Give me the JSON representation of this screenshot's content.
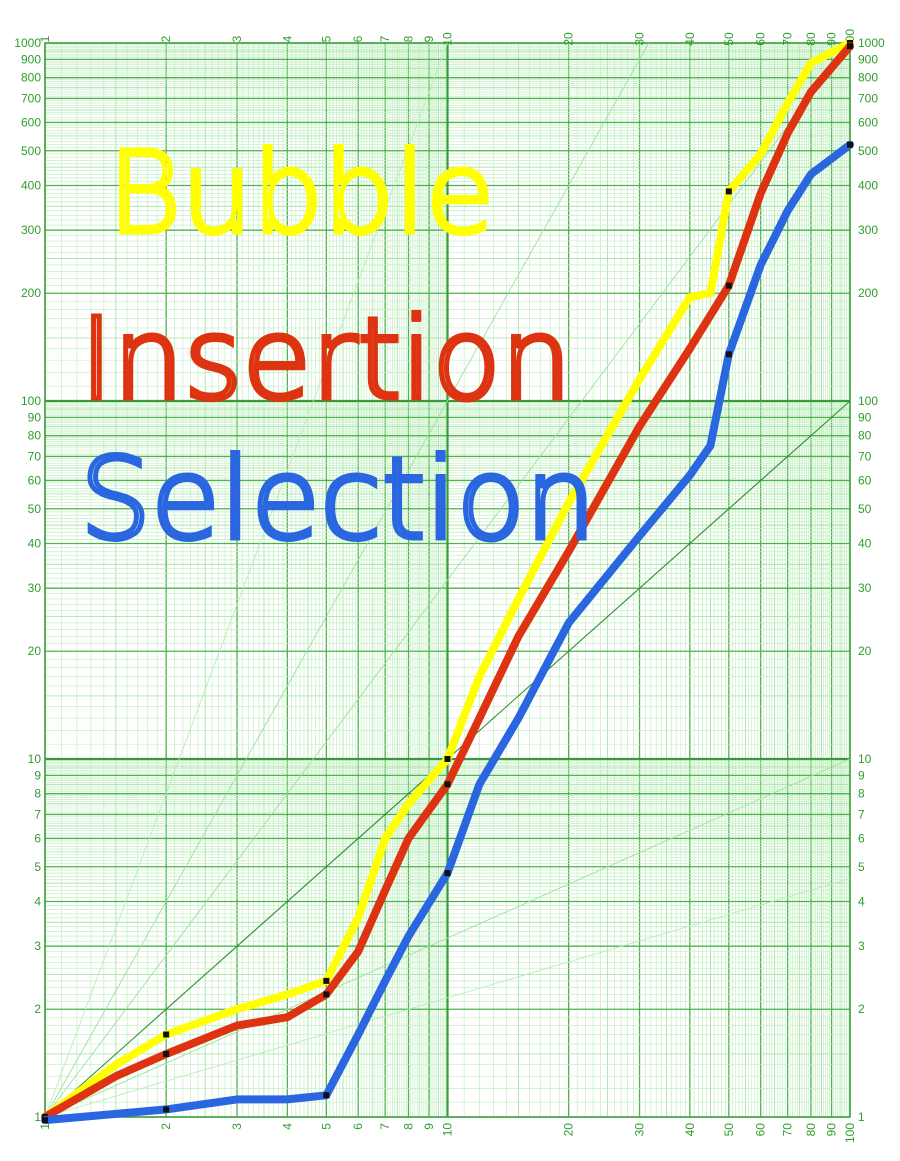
{
  "chart_data": {
    "type": "line",
    "title": "",
    "xlabel": "",
    "ylabel": "",
    "x_scale": "log",
    "y_scale": "log",
    "xlim": [
      1,
      100
    ],
    "ylim": [
      1,
      1000
    ],
    "grid": true,
    "legend_position": "top-left",
    "x_tick_labels": [
      "1",
      "2",
      "3",
      "4",
      "5",
      "6",
      "7",
      "8",
      "9",
      "10",
      "20",
      "30",
      "40",
      "50",
      "60",
      "70",
      "80",
      "90",
      "100"
    ],
    "y_tick_labels": [
      "1",
      "2",
      "3",
      "4",
      "5",
      "6",
      "7",
      "8",
      "9",
      "10",
      "20",
      "30",
      "40",
      "50",
      "60",
      "70",
      "80",
      "90",
      "100",
      "200",
      "300",
      "400",
      "500",
      "600",
      "700",
      "800",
      "900",
      "1000"
    ],
    "series": [
      {
        "name": "Bubble",
        "color": "#ffff00",
        "points": [
          [
            1,
            1
          ],
          [
            1.5,
            1.4
          ],
          [
            2,
            1.7
          ],
          [
            3,
            2.0
          ],
          [
            4,
            2.2
          ],
          [
            5,
            2.4
          ],
          [
            6,
            3.6
          ],
          [
            7,
            6.0
          ],
          [
            8,
            7.5
          ],
          [
            10,
            10
          ],
          [
            12,
            17
          ],
          [
            15,
            28
          ],
          [
            20,
            52
          ],
          [
            30,
            115
          ],
          [
            40,
            195
          ],
          [
            45,
            200
          ],
          [
            50,
            385
          ],
          [
            60,
            490
          ],
          [
            70,
            680
          ],
          [
            80,
            880
          ],
          [
            100,
            1000
          ]
        ]
      },
      {
        "name": "Insertion",
        "color": "#dd3311",
        "points": [
          [
            1,
            1
          ],
          [
            1.5,
            1.3
          ],
          [
            2,
            1.5
          ],
          [
            3,
            1.8
          ],
          [
            4,
            1.9
          ],
          [
            5,
            2.2
          ],
          [
            6,
            2.9
          ],
          [
            7,
            4.3
          ],
          [
            8,
            6.0
          ],
          [
            10,
            8.5
          ],
          [
            12,
            13
          ],
          [
            15,
            22
          ],
          [
            20,
            38
          ],
          [
            30,
            85
          ],
          [
            40,
            140
          ],
          [
            50,
            210
          ],
          [
            60,
            380
          ],
          [
            70,
            560
          ],
          [
            80,
            730
          ],
          [
            100,
            980
          ]
        ]
      },
      {
        "name": "Selection",
        "color": "#2a66e0",
        "points": [
          [
            1,
            0.98
          ],
          [
            1.5,
            1.02
          ],
          [
            2,
            1.05
          ],
          [
            3,
            1.12
          ],
          [
            4,
            1.12
          ],
          [
            5,
            1.15
          ],
          [
            6,
            1.7
          ],
          [
            7,
            2.4
          ],
          [
            8,
            3.2
          ],
          [
            10,
            4.8
          ],
          [
            12,
            8.5
          ],
          [
            15,
            13
          ],
          [
            20,
            24
          ],
          [
            30,
            42
          ],
          [
            40,
            62
          ],
          [
            45,
            75
          ],
          [
            50,
            135
          ],
          [
            60,
            240
          ],
          [
            70,
            340
          ],
          [
            80,
            430
          ],
          [
            100,
            520
          ]
        ]
      }
    ]
  }
}
